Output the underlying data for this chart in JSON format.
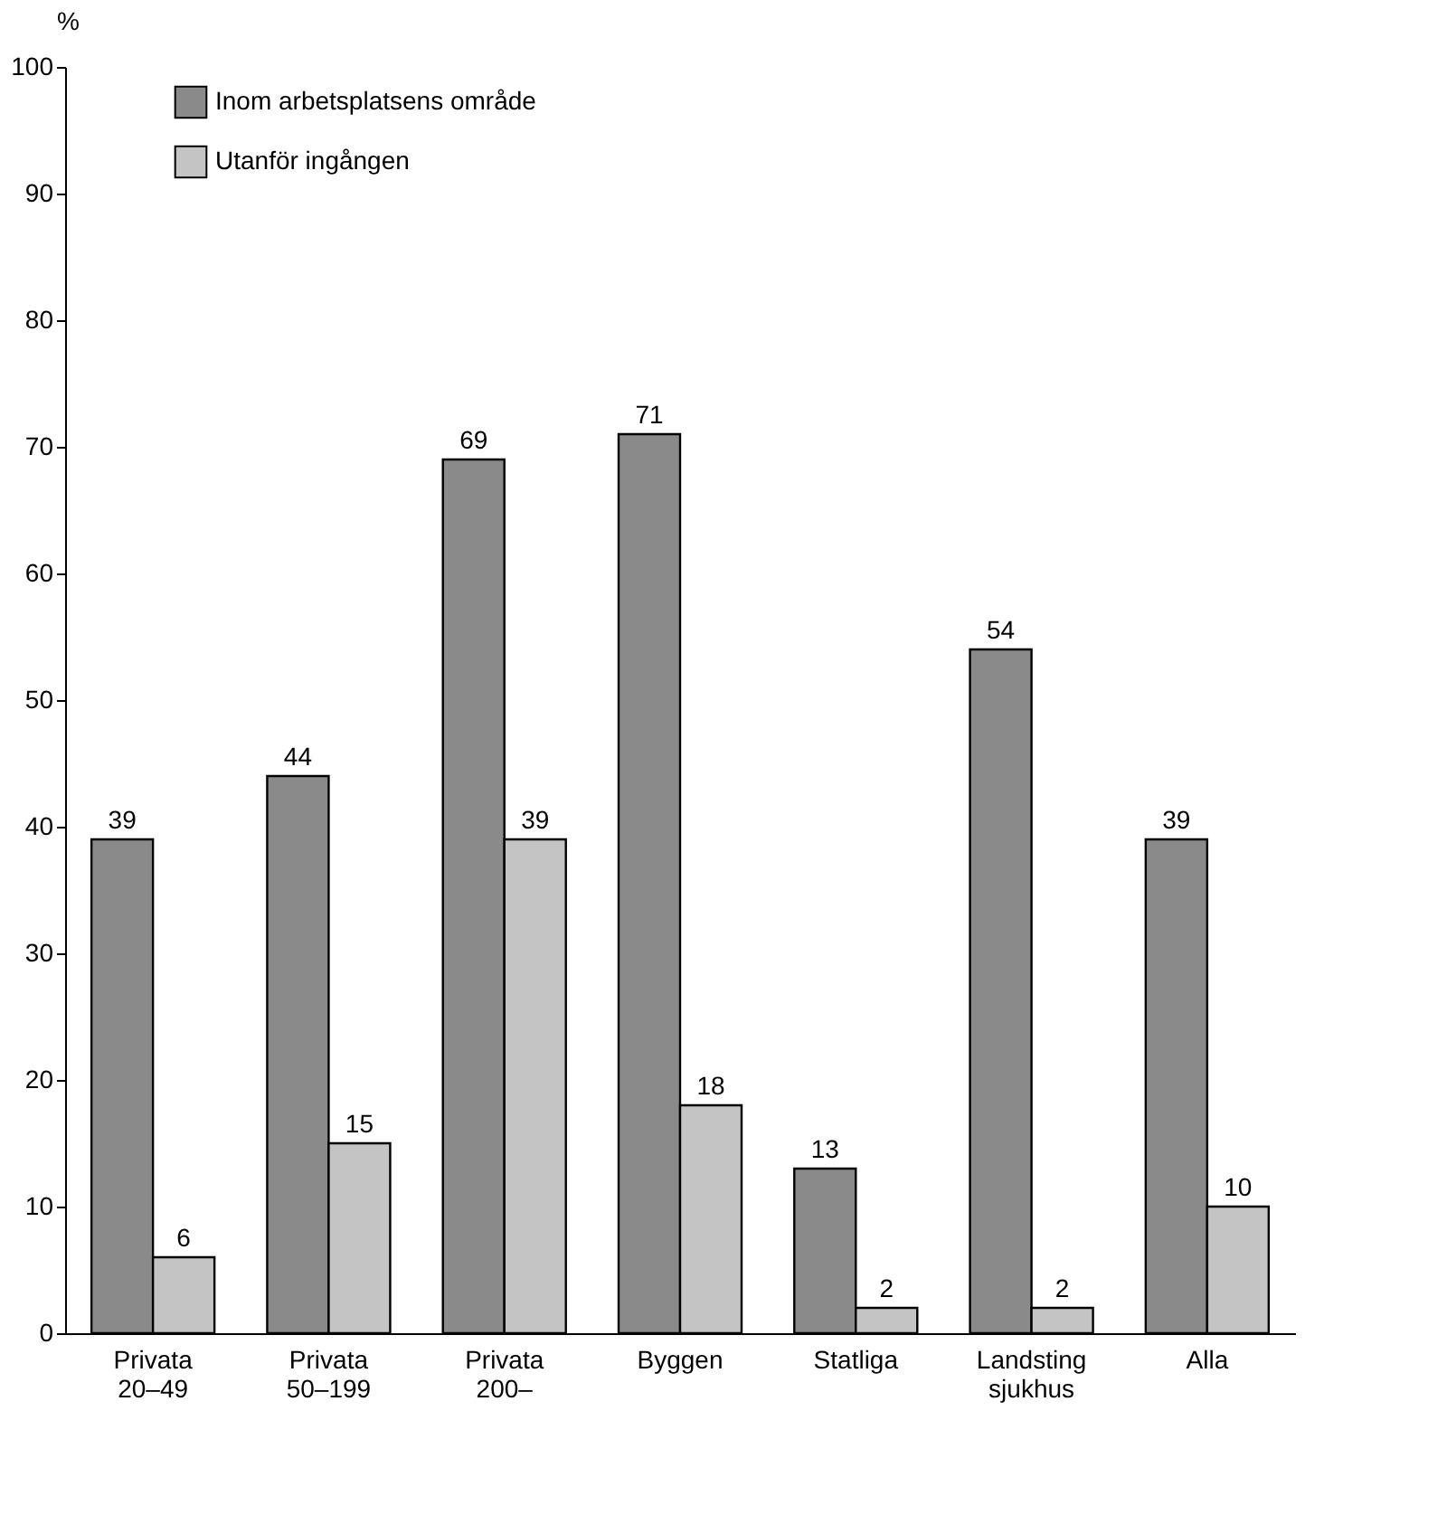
{
  "chart_data": {
    "type": "bar",
    "ylabel": "%",
    "categories": [
      "Privata\n20–49",
      "Privata\n50–199",
      "Privata\n200–",
      "Byggen",
      "Statliga",
      "Landsting\nsjukhus",
      "Alla"
    ],
    "series": [
      {
        "name": "Inom arbetsplatsens område",
        "color": "#8a8a8a",
        "values": [
          39,
          44,
          69,
          71,
          13,
          54,
          39
        ]
      },
      {
        "name": "Utanför ingången",
        "color": "#c4c4c4",
        "values": [
          6,
          15,
          39,
          18,
          2,
          2,
          10
        ]
      }
    ],
    "ylim": [
      0,
      100
    ],
    "yticks": [
      0,
      10,
      20,
      30,
      40,
      50,
      60,
      70,
      80,
      90,
      100
    ],
    "grid": false,
    "legend": "top left",
    "data_labels": true
  }
}
